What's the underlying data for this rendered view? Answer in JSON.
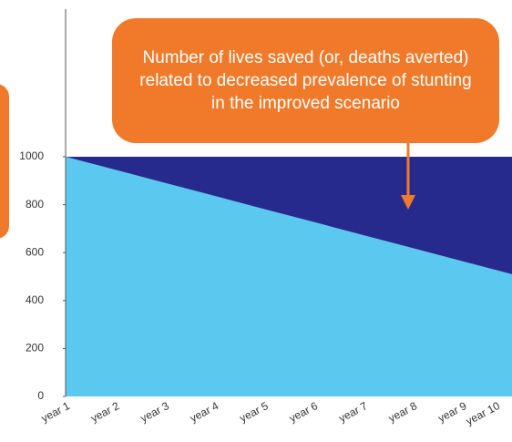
{
  "chart_data": {
    "type": "area",
    "categories": [
      "year 1",
      "year 2",
      "year 3",
      "year 4",
      "year 5",
      "year 6",
      "year 7",
      "year 8",
      "year 9",
      "year 10"
    ],
    "series": [
      {
        "color": "#5bc8f0",
        "values": [
          1000,
          946,
          891,
          837,
          782,
          728,
          673,
          619,
          564,
          510
        ]
      },
      {
        "color": "#262a8c",
        "values": [
          0,
          54,
          109,
          163,
          218,
          272,
          327,
          381,
          436,
          490
        ]
      }
    ],
    "stacked": true,
    "ylim": [
      0,
      1000
    ],
    "yticks": [
      0,
      200,
      400,
      600,
      800,
      1000
    ],
    "annotation": "Number of lives saved (or, deaths averted) related to decreased prevalence of stunting in the improved scenario"
  }
}
